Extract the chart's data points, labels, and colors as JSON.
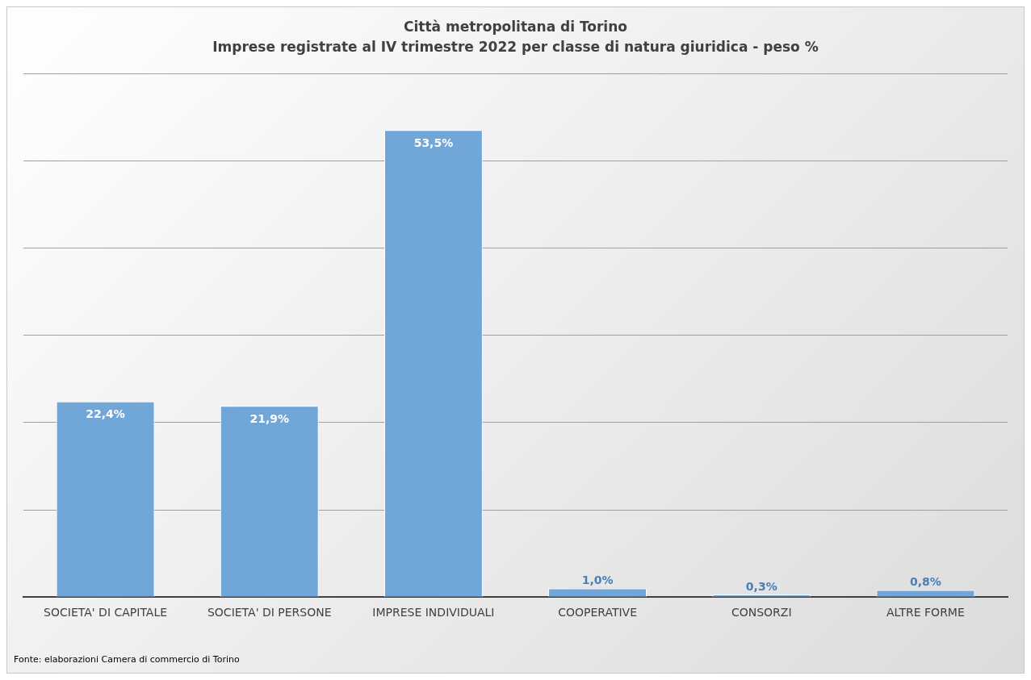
{
  "chart_data": {
    "type": "bar",
    "title": "Città metropolitana di Torino",
    "subtitle": "Imprese registrate al IV trimestre 2022  per classe di natura giuridica - peso %",
    "categories": [
      "SOCIETA' DI CAPITALE",
      "SOCIETA' DI PERSONE",
      "IMPRESE INDIVIDUALI",
      "COOPERATIVE",
      "CONSORZI",
      "ALTRE FORME"
    ],
    "values": [
      22.4,
      21.9,
      53.5,
      1.0,
      0.3,
      0.8
    ],
    "value_labels": [
      "22,4%",
      "21,9%",
      "53,5%",
      "1,0%",
      "0,3%",
      "0,8%"
    ],
    "color": "#70a6d8",
    "ylim": [
      0,
      60
    ],
    "yticks": [
      {
        "value": 0,
        "label": null
      },
      {
        "value": 10,
        "label": null
      },
      {
        "value": 20,
        "label": null
      },
      {
        "value": 30,
        "label": null
      },
      {
        "value": 40,
        "label": null
      },
      {
        "value": 50,
        "label": null
      },
      {
        "value": 60,
        "label": null
      }
    ],
    "tick_labels": "x",
    "grid": "y",
    "legend": false,
    "annotations": [
      "Fonte: elaborazioni Camera di commercio di Torino"
    ]
  }
}
